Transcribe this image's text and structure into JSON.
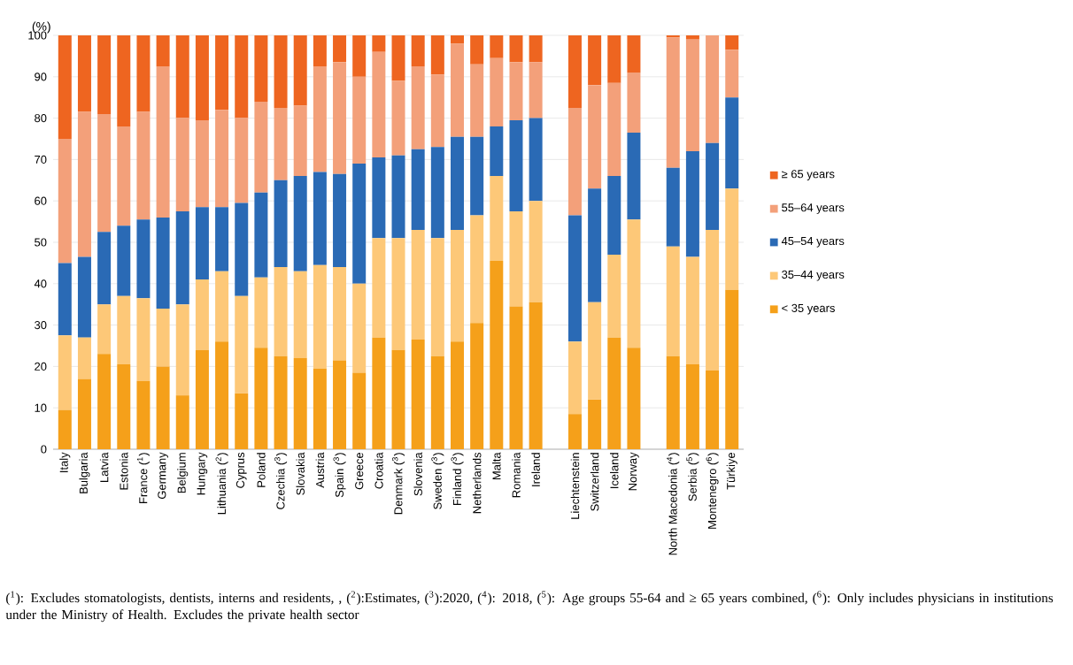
{
  "chart_data": {
    "type": "bar",
    "stacked": true,
    "ylabel": "(%)",
    "categories": [
      "Italy",
      "Bulgaria",
      "Latvia",
      "Estonia",
      "France ($^{1}$)",
      "Germany",
      "Belgium",
      "Hungary",
      "Lithuania ($^{2}$)",
      "Cyprus",
      "Poland",
      "Czechia ($^{3}$)",
      "Slovakia",
      "Austria",
      "Spain ($^{3}$)",
      "Greece",
      "Croatia",
      "Denmark ($^{3}$)",
      "Slovenia",
      "Sweden ($^{3}$)",
      "Finland ($^{3}$)",
      "Netherlands",
      "Malta",
      "Romania",
      "Ireland",
      null,
      "Liechtenstein",
      "Switzerland",
      "Iceland",
      "Norway",
      null,
      "North Macedonia ($^{4}$)",
      "Serbia ($^{5}$)",
      "Montenegro ($^{6}$)",
      "Türkiye"
    ],
    "series": [
      {
        "name": "< 35 years",
        "color": "#f5a01a",
        "values": [
          9.5,
          17,
          23,
          20.5,
          16.5,
          20,
          13,
          24,
          26,
          13.5,
          24.5,
          22.5,
          22,
          19.5,
          21.5,
          18.5,
          27,
          24,
          26.5,
          22.5,
          26,
          30.5,
          45.5,
          34.5,
          35.5,
          null,
          8.5,
          12,
          27,
          24.5,
          null,
          22.5,
          20.5,
          19,
          38.5
        ]
      },
      {
        "name": "35–44 years",
        "color": "#fdc878",
        "values": [
          18,
          10,
          12,
          16.5,
          20,
          14,
          22,
          17,
          17,
          23.5,
          17,
          21.5,
          21,
          25,
          22.5,
          21.5,
          24,
          27,
          26.5,
          28.5,
          27,
          26,
          20.5,
          23,
          24.5,
          null,
          17.5,
          23.5,
          20,
          31,
          null,
          26.5,
          26,
          34,
          24.5
        ]
      },
      {
        "name": "45–54 years",
        "color": "#2a6ab5",
        "values": [
          17.5,
          19.5,
          17.5,
          17,
          19,
          22,
          22.5,
          17.5,
          15.5,
          22.5,
          20.5,
          21,
          23,
          22.5,
          22.5,
          29,
          19.5,
          20,
          19.5,
          22,
          22.5,
          19,
          12,
          22,
          20,
          null,
          30.5,
          27.5,
          19,
          21,
          null,
          19,
          25.5,
          21,
          22
        ]
      },
      {
        "name": "55–64 years",
        "color": "#f3a07a",
        "values": [
          30,
          35,
          28.5,
          24,
          26,
          36.5,
          22.5,
          21,
          23.5,
          20.5,
          22,
          17.5,
          17,
          25.5,
          27,
          21,
          25.5,
          18,
          20,
          17.5,
          22.5,
          17.5,
          16.5,
          14,
          13.5,
          null,
          26,
          25,
          22.5,
          14.5,
          null,
          31.5,
          27,
          26,
          11.5
        ]
      },
      {
        "name": "≥ 65 years",
        "color": "#ee6520",
        "values": [
          25,
          18.5,
          19,
          22,
          18.5,
          7.5,
          20,
          20.5,
          18,
          20,
          16,
          17.5,
          17,
          7.5,
          6.5,
          10,
          4,
          11,
          7.5,
          9.5,
          2,
          7,
          5.5,
          6.5,
          6.5,
          null,
          17.5,
          12,
          11.5,
          9,
          null,
          0.5,
          1,
          0,
          3.5
        ]
      }
    ],
    "ylim": [
      0,
      100
    ],
    "yticks": [
      0,
      10,
      20,
      30,
      40,
      50,
      60,
      70,
      80,
      90,
      100
    ],
    "grid": "y",
    "legend": "right",
    "annotations": [
      "($^{1}$): Excludes stomatologists, dentists, interns and residents, , ($^{2}$):Estimates, ($^{3}$):2020,  ($^{4}$): 2018, ($^{5}$): Age groups 55-64 and ≥ 65 years combined, ($^{6}$): Only includes physicians in institutions under the Ministry of Health. Excludes the private health sector"
    ]
  }
}
